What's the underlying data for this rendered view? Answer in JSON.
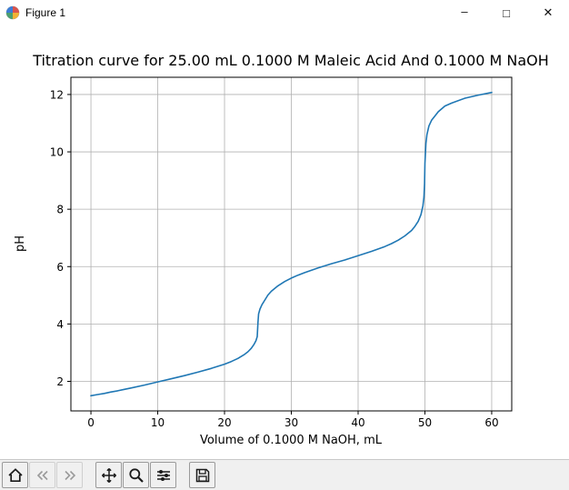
{
  "window": {
    "title": "Figure 1",
    "minimize_glyph": "–",
    "maximize_glyph": "□",
    "close_glyph": "✕"
  },
  "toolbar": {
    "buttons": [
      "home-icon",
      "back-icon",
      "forward-icon",
      "pan-icon",
      "zoom-icon",
      "subplots-icon",
      "save-icon"
    ]
  },
  "chart_data": {
    "type": "line",
    "title": "Titration curve for 25.00 mL 0.1000 M Maleic Acid And 0.1000 M NaOH",
    "xlabel": "Volume of 0.1000 M NaOH, mL",
    "ylabel": "pH",
    "xlim": [
      -3,
      63
    ],
    "ylim": [
      0.97,
      12.6
    ],
    "xticks": [
      0,
      10,
      20,
      30,
      40,
      50,
      60
    ],
    "yticks": [
      2,
      4,
      6,
      8,
      10,
      12
    ],
    "grid": true,
    "grid_color": "#b0b0b0",
    "line_color": "#1f77b4",
    "legend": "none",
    "series": [
      {
        "name": "titration curve",
        "x": [
          0,
          1,
          2,
          3,
          4,
          5,
          6,
          8,
          10,
          12,
          14,
          16,
          18,
          20,
          21,
          22,
          23,
          23.5,
          24,
          24.4,
          24.7,
          24.9,
          25,
          25.1,
          25.3,
          25.6,
          26,
          26.5,
          27,
          28,
          29,
          30,
          31,
          32,
          34,
          36,
          38,
          40,
          42,
          44,
          45,
          46,
          47,
          48,
          48.5,
          49,
          49.4,
          49.7,
          49.85,
          49.95,
          50,
          50.05,
          50.15,
          50.3,
          50.6,
          51,
          52,
          53,
          54,
          56,
          58,
          60
        ],
        "y": [
          1.5,
          1.54,
          1.58,
          1.63,
          1.67,
          1.72,
          1.77,
          1.87,
          1.98,
          2.09,
          2.2,
          2.32,
          2.45,
          2.6,
          2.69,
          2.8,
          2.94,
          3.03,
          3.15,
          3.28,
          3.42,
          3.56,
          4.05,
          4.35,
          4.52,
          4.67,
          4.82,
          5.01,
          5.14,
          5.33,
          5.48,
          5.6,
          5.7,
          5.79,
          5.95,
          6.1,
          6.23,
          6.38,
          6.53,
          6.7,
          6.8,
          6.92,
          7.07,
          7.26,
          7.4,
          7.58,
          7.81,
          8.12,
          8.42,
          8.9,
          9.6,
          9.8,
          10.3,
          10.6,
          10.9,
          11.1,
          11.4,
          11.6,
          11.7,
          11.87,
          11.98,
          12.07
        ]
      }
    ]
  }
}
